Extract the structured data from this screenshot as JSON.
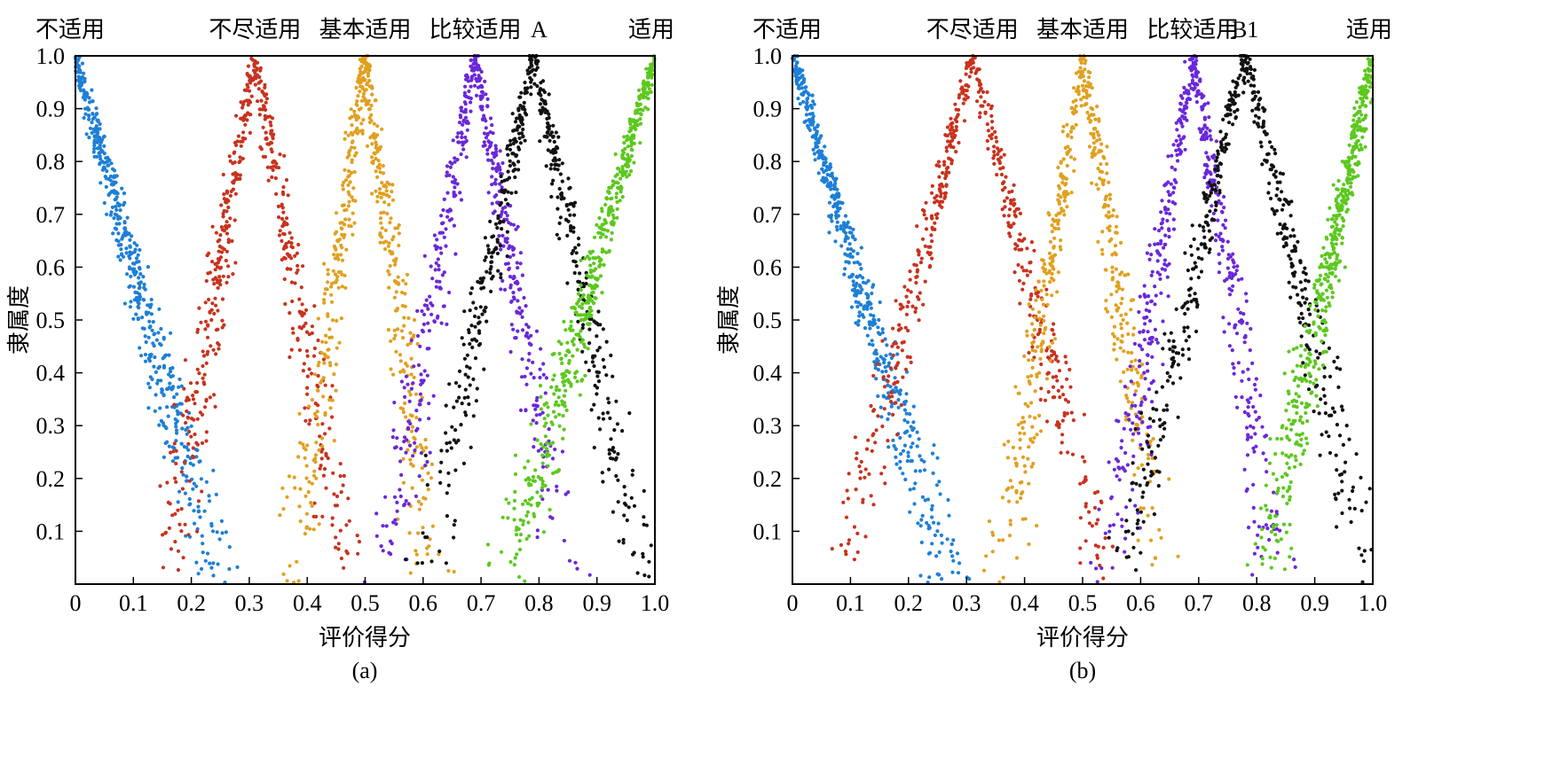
{
  "chart_data": [
    {
      "type": "scatter",
      "caption": "(a)",
      "xlabel": "评价得分",
      "ylabel": "隶属度",
      "xlim": [
        0,
        1
      ],
      "ylim": [
        0,
        1
      ],
      "x_ticks": [
        "0",
        "0.1",
        "0.2",
        "0.3",
        "0.4",
        "0.5",
        "0.6",
        "0.7",
        "0.8",
        "0.9",
        "1.0"
      ],
      "y_ticks": [
        "0.1",
        "0.2",
        "0.3",
        "0.4",
        "0.5",
        "0.6",
        "0.7",
        "0.8",
        "0.9",
        "1.0"
      ],
      "grid": false,
      "top_labels": [
        {
          "text": "不适用",
          "x": 0.0
        },
        {
          "text": "不尽适用",
          "x": 0.31
        },
        {
          "text": "基本适用",
          "x": 0.5
        },
        {
          "text": "比较适用",
          "x": 0.69
        },
        {
          "text": "A",
          "x": 0.8
        },
        {
          "text": "适用",
          "x": 1.0
        }
      ],
      "series": [
        {
          "name": "不适用",
          "color": "#1e7fd6",
          "peak": 0.0,
          "half_width_left": 0.0,
          "half_width_right": 0.25,
          "shape": "right-falling"
        },
        {
          "name": "不尽适用",
          "color": "#c8321e",
          "peak": 0.31,
          "half_width_left": 0.16,
          "half_width_right": 0.16,
          "shape": "bell"
        },
        {
          "name": "基本适用",
          "color": "#e0a020",
          "peak": 0.5,
          "half_width_left": 0.12,
          "half_width_right": 0.12,
          "shape": "bell"
        },
        {
          "name": "比较适用",
          "color": "#6a28d8",
          "peak": 0.69,
          "half_width_left": 0.16,
          "half_width_right": 0.16,
          "shape": "bell"
        },
        {
          "name": "A",
          "color": "#111111",
          "peak": 0.79,
          "half_width_left": 0.19,
          "half_width_right": 0.19,
          "shape": "bell"
        },
        {
          "name": "适用",
          "color": "#5cc81e",
          "peak": 1.0,
          "half_width_left": 0.26,
          "half_width_right": 0.0,
          "shape": "left-rising"
        }
      ]
    },
    {
      "type": "scatter",
      "caption": "(b)",
      "xlabel": "评价得分",
      "ylabel": "隶属度",
      "xlim": [
        0,
        1
      ],
      "ylim": [
        0,
        1
      ],
      "x_ticks": [
        "0",
        "0.1",
        "0.2",
        "0.3",
        "0.4",
        "0.5",
        "0.6",
        "0.7",
        "0.8",
        "0.9",
        "1.0"
      ],
      "y_ticks": [
        "0.1",
        "0.2",
        "0.3",
        "0.4",
        "0.5",
        "0.6",
        "0.7",
        "0.8",
        "0.9",
        "1.0"
      ],
      "grid": false,
      "top_labels": [
        {
          "text": "不适用",
          "x": 0.0
        },
        {
          "text": "不尽适用",
          "x": 0.31
        },
        {
          "text": "基本适用",
          "x": 0.5
        },
        {
          "text": "比较适用",
          "x": 0.69
        },
        {
          "text": "B1",
          "x": 0.78
        },
        {
          "text": "适用",
          "x": 1.0
        }
      ],
      "series": [
        {
          "name": "不适用",
          "color": "#1e7fd6",
          "peak": 0.0,
          "half_width_left": 0.0,
          "half_width_right": 0.27,
          "shape": "right-falling"
        },
        {
          "name": "不尽适用",
          "color": "#c8321e",
          "peak": 0.31,
          "half_width_left": 0.23,
          "half_width_right": 0.23,
          "shape": "bell"
        },
        {
          "name": "基本适用",
          "color": "#e0a020",
          "peak": 0.5,
          "half_width_left": 0.14,
          "half_width_right": 0.14,
          "shape": "bell"
        },
        {
          "name": "比较适用",
          "color": "#6a28d8",
          "peak": 0.69,
          "half_width_left": 0.15,
          "half_width_right": 0.15,
          "shape": "bell"
        },
        {
          "name": "B1",
          "color": "#111111",
          "peak": 0.78,
          "half_width_left": 0.22,
          "half_width_right": 0.22,
          "shape": "bell"
        },
        {
          "name": "适用",
          "color": "#5cc81e",
          "peak": 1.0,
          "half_width_left": 0.19,
          "half_width_right": 0.0,
          "shape": "left-rising"
        }
      ]
    }
  ]
}
